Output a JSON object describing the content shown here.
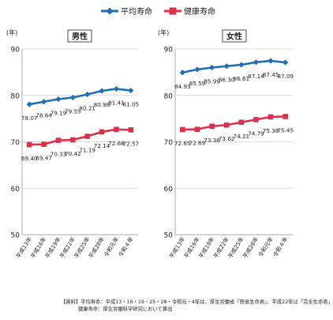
{
  "legend": {
    "avg_label": "平均寿命",
    "healthy_label": "健康寿命",
    "avg_color": "#1f6fb2",
    "healthy_color": "#d9324b"
  },
  "chart_data": [
    {
      "type": "line",
      "title": "男性",
      "ylabel": "(年)",
      "ylim": [
        50,
        90
      ],
      "yticks": [
        50,
        60,
        70,
        80,
        90
      ],
      "categories": [
        "平成13年",
        "平成16年",
        "平成19年",
        "平成22年",
        "平成25年",
        "平成28年",
        "令和元年",
        "令和４年"
      ],
      "series": [
        {
          "name": "平均寿命",
          "color": "#1f6fb2",
          "marker": "diamond",
          "values": [
            78.07,
            78.64,
            79.19,
            79.55,
            80.21,
            80.98,
            81.41,
            81.05
          ]
        },
        {
          "name": "健康寿命",
          "color": "#d9324b",
          "marker": "square",
          "values": [
            69.4,
            69.47,
            70.33,
            70.42,
            71.19,
            72.14,
            72.68,
            72.57
          ]
        }
      ]
    },
    {
      "type": "line",
      "title": "女性",
      "ylabel": "(年)",
      "ylim": [
        50,
        90
      ],
      "yticks": [
        50,
        60,
        70,
        80,
        90
      ],
      "categories": [
        "平成13年",
        "平成16年",
        "平成19年",
        "平成22年",
        "平成25年",
        "平成28年",
        "令和元年",
        "令和４年"
      ],
      "series": [
        {
          "name": "平均寿命",
          "color": "#1f6fb2",
          "marker": "diamond",
          "values": [
            84.93,
            85.59,
            85.99,
            86.3,
            86.61,
            87.14,
            87.45,
            87.09
          ]
        },
        {
          "name": "健康寿命",
          "color": "#d9324b",
          "marker": "square",
          "values": [
            72.65,
            72.69,
            73.36,
            73.62,
            74.21,
            74.79,
            75.38,
            75.45
          ]
        }
      ]
    }
  ],
  "footnote": {
    "line1": "【資料】平均寿命：平成13・16・19・25・28・令和元・4年は、厚生労働省「簡易生命表」、平成22年は「完全生命表」",
    "line2": "健康寿命：厚生労働科学研究において算出"
  }
}
